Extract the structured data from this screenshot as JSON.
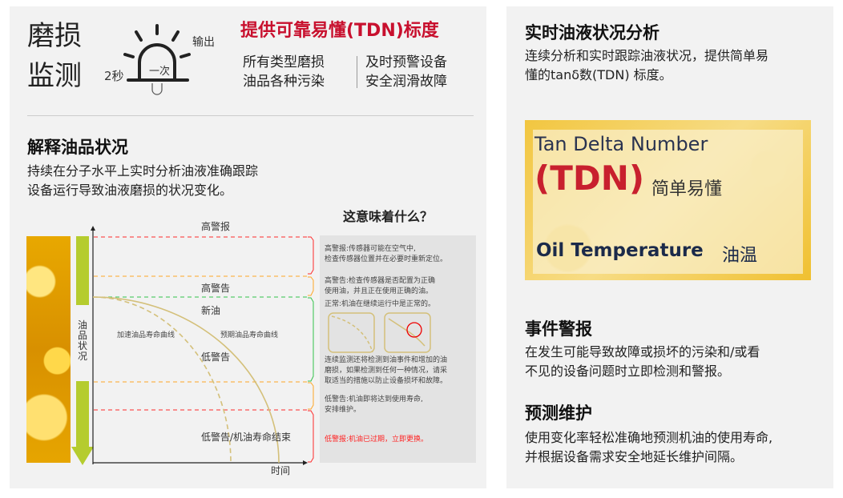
{
  "left": {
    "title_lines": [
      "磨损",
      "监测"
    ],
    "alarm": {
      "interval": "2秒",
      "once": "一次",
      "output": "输出"
    },
    "headline": "提供可靠易懂(TDN)标度",
    "features_col1": [
      "所有类型磨损",
      "油品各种污染"
    ],
    "features_col2": [
      "及时预警设备",
      "安全润滑故障"
    ],
    "section_title": "解释油品状况",
    "section_text": [
      "持续在分子水平上实时分析油液准确跟踪",
      "设备运行导致油液磨损的状况变化。"
    ],
    "meaning_title": "这意味着什么？",
    "chart": {
      "y_label": "油品状况",
      "x_label": "时间",
      "zones": [
        "高警报",
        "高警告",
        "新油",
        "低警告",
        "低警告/机油寿命结束"
      ],
      "curves": [
        "加速油品寿命曲线",
        "预期油品寿命曲线"
      ],
      "colors": {
        "alarm": "#ff2a2a",
        "warning": "#ffa726",
        "normal": "#33c24a",
        "curve": "#d4c07a",
        "arrow": "#b5cc2e"
      }
    },
    "notes": {
      "high_alarm": [
        "高警报:传感器可能在空气中,",
        "检查传感器位置并在必要时重新定位。"
      ],
      "high_warning": [
        "高警告:检查传感器是否配置为正确",
        "使用油，并且正在使用正确的油。"
      ],
      "normal": "正常:机油在继续运行中是正常的。",
      "monitor": [
        "连续监测还将检测到油事件和增加的油",
        "磨损，如果检测到任何一种情况，请采",
        "取适当的措施以防止设备损坏和故障。"
      ],
      "low_warning": [
        "低警告:机油即将达到使用寿命,",
        "安排维护。"
      ],
      "low_alarm": "低警报:机油已过期，立即更换。"
    }
  },
  "right": {
    "title": "实时油液状况分析",
    "text": [
      "连续分析和实时跟踪油液状况，提供简单易",
      "懂的tanδ数(TDN) 标度。"
    ],
    "tdn_card": {
      "line1": "Tan Delta Number",
      "tdn": "(TDN)",
      "easy": "简单易懂",
      "temp": "Oil Temperature",
      "temp_cn": "油温"
    },
    "event_title": "事件警报",
    "event_text": [
      "在发生可能导致故障或损坏的污染和/或看",
      "不见的设备问题时立即检测和警报。"
    ],
    "maint_title": "预测维护",
    "maint_text": [
      "使用变化率轻松准确地预测机油的使用寿命,",
      "并根据设备需求安全地延长维护间隔。"
    ]
  },
  "colors": {
    "accent_red": "#c8102e",
    "panel_bg": "#f2f2f2",
    "navy": "#1b2a4a"
  }
}
